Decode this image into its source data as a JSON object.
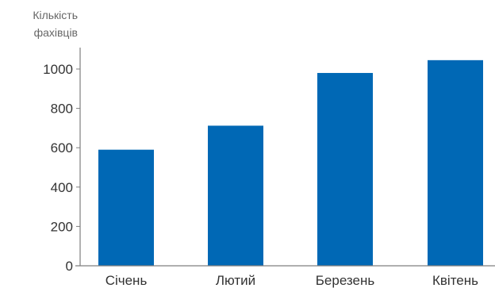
{
  "chart_data": {
    "type": "bar",
    "title": "",
    "ylabel": [
      "Кількість",
      "фахівців"
    ],
    "xlabel": "",
    "categories": [
      "Січень",
      "Лютий",
      "Березень",
      "Квітень"
    ],
    "values": [
      590,
      712,
      980,
      1045
    ],
    "ylim": [
      0,
      1100
    ],
    "yticks": [
      0,
      200,
      400,
      600,
      800,
      1000
    ],
    "grid": false,
    "bar_color": "#0068B5",
    "axis_color": "#7f7f7f"
  }
}
